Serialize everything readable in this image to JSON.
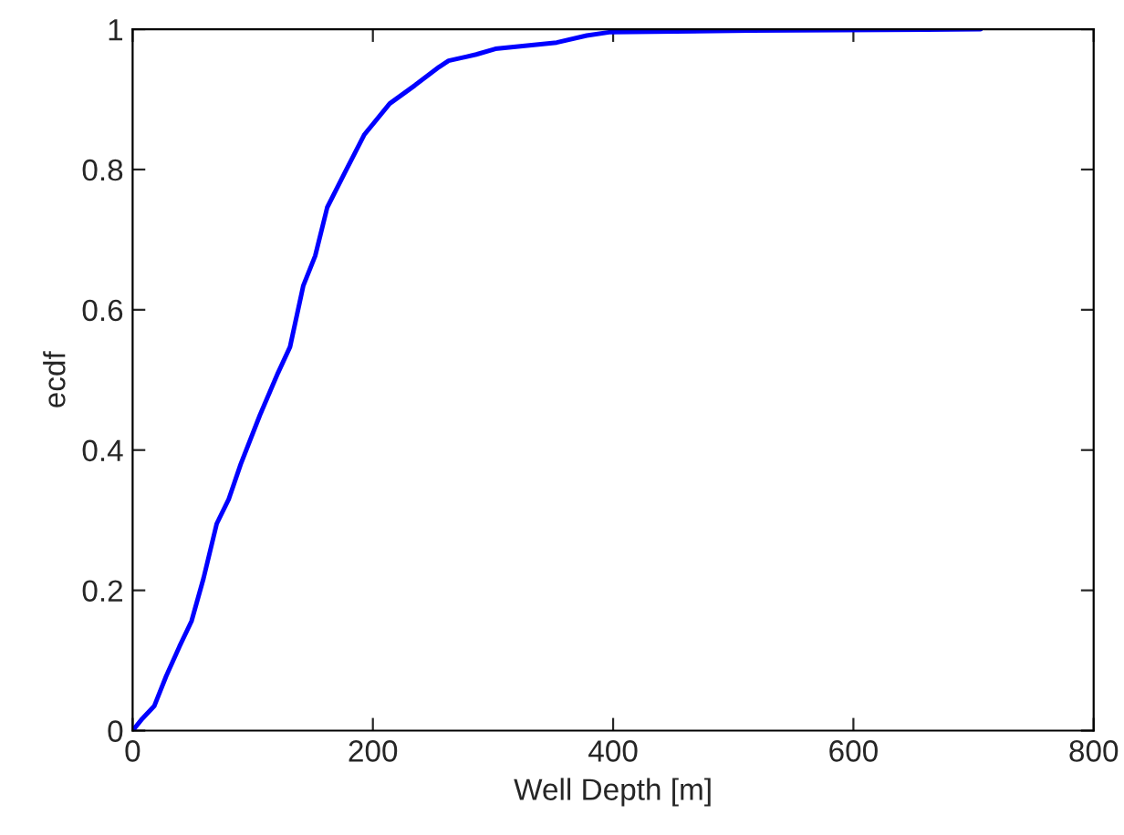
{
  "chart_data": {
    "type": "line",
    "xlabel": "Well Depth [m]",
    "ylabel": "ecdf",
    "xlim": [
      0,
      800
    ],
    "ylim": [
      0,
      1
    ],
    "xticks": [
      0,
      200,
      400,
      600,
      800
    ],
    "yticks": [
      0,
      0.2,
      0.4,
      0.6,
      0.8,
      1
    ],
    "grid": false,
    "legend": false,
    "series": [
      {
        "color": "#0000ff",
        "x": [
          0,
          8,
          18,
          28,
          39,
          49,
          59,
          70,
          80,
          90,
          106,
          121,
          131,
          142,
          152,
          162,
          178,
          193,
          214,
          235,
          255,
          263,
          286,
          302,
          353,
          378,
          398,
          515,
          706
        ],
        "values": [
          0,
          0.017,
          0.035,
          0.078,
          0.12,
          0.156,
          0.217,
          0.295,
          0.33,
          0.38,
          0.45,
          0.51,
          0.547,
          0.634,
          0.677,
          0.746,
          0.8,
          0.85,
          0.894,
          0.92,
          0.946,
          0.955,
          0.964,
          0.972,
          0.981,
          0.991,
          0.996,
          0.998,
          1.0
        ]
      }
    ]
  }
}
